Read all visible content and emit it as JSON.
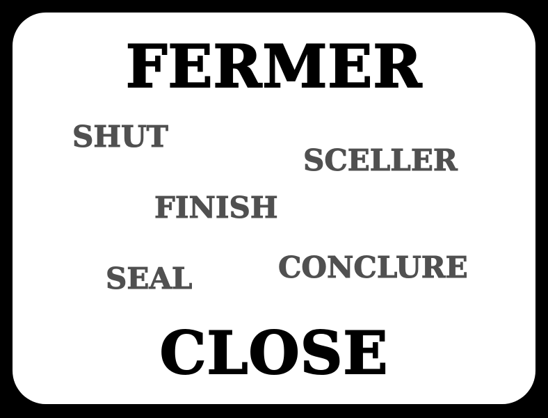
{
  "colors": {
    "border": "#000000",
    "background": "#ffffff",
    "title_text": "#000000",
    "synonym_text": "#505050"
  },
  "title_word": "FERMER",
  "bottom_word": "CLOSE",
  "synonyms": {
    "shut": "SHUT",
    "sceller": "SCELLER",
    "finish": "FINISH",
    "seal": "SEAL",
    "conclure": "CONCLURE"
  }
}
